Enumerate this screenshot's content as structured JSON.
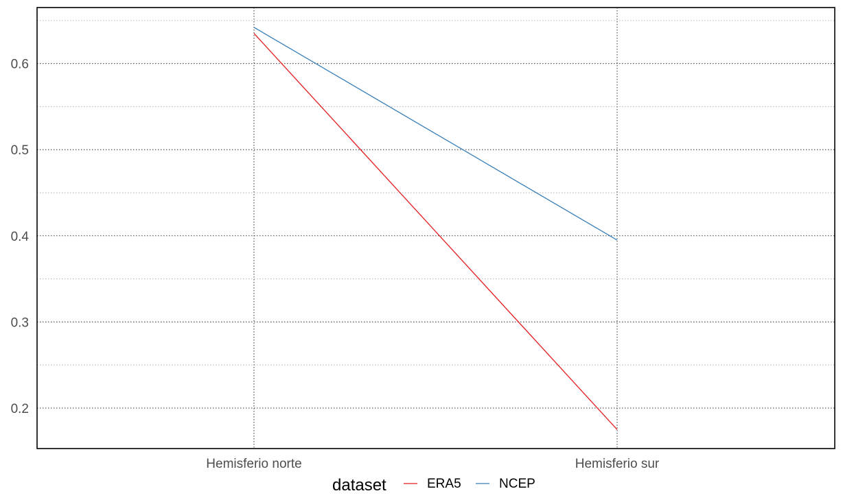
{
  "chart_data": {
    "type": "line",
    "categories": [
      "Hemisferio norte",
      "Hemisferio sur"
    ],
    "series": [
      {
        "name": "ERA5",
        "values": [
          0.635,
          0.175
        ],
        "color": "#e41a1c"
      },
      {
        "name": "NCEP",
        "values": [
          0.642,
          0.395
        ],
        "color": "#377eb8"
      }
    ],
    "yticks": [
      0.2,
      0.3,
      0.4,
      0.5,
      0.6
    ],
    "ylim": [
      0.153,
      0.665
    ],
    "title": "",
    "xlabel": "",
    "ylabel": "",
    "grid": true,
    "legend": {
      "title": "dataset",
      "placement": "bottom"
    }
  }
}
